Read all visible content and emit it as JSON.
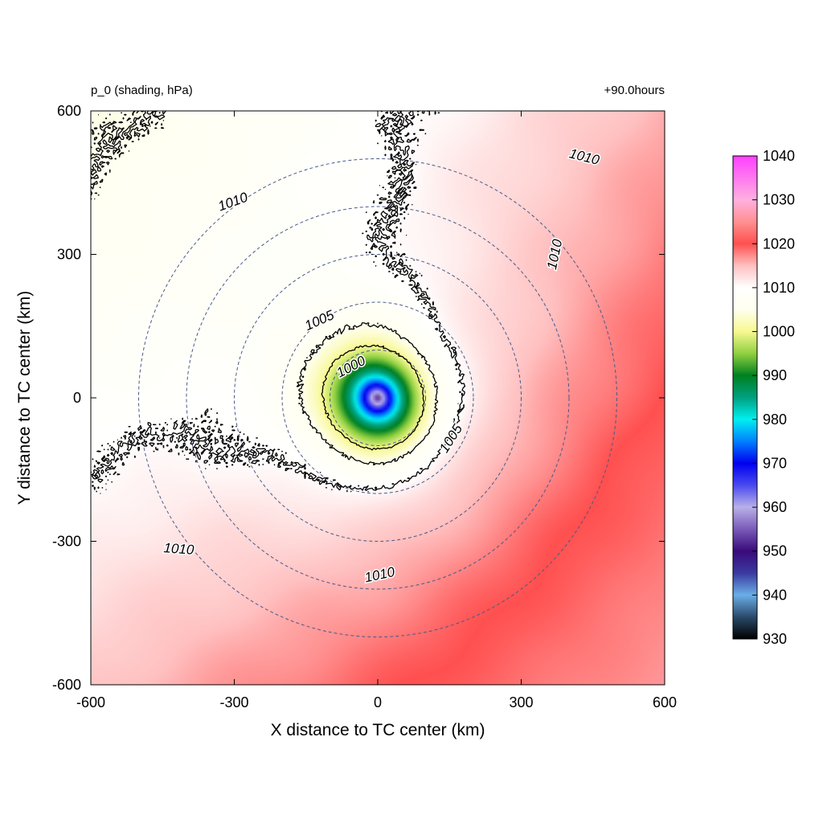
{
  "chart_data": {
    "type": "heatmap",
    "title_left": "p_0 (shading, hPa)",
    "title_right": "+90.0hours",
    "xlabel": "X distance to TC center (km)",
    "ylabel": "Y distance to TC center (km)",
    "xlim": [
      -600,
      600
    ],
    "ylim": [
      -600,
      600
    ],
    "xticks": [
      -600,
      -300,
      0,
      300,
      600
    ],
    "yticks": [
      -600,
      -300,
      0,
      300,
      600
    ],
    "colorbar": {
      "min": 930,
      "max": 1040,
      "ticks": [
        930,
        940,
        950,
        960,
        970,
        980,
        990,
        1000,
        1010,
        1020,
        1030,
        1040
      ],
      "stops": [
        {
          "value": 930,
          "color": "#000000"
        },
        {
          "value": 935,
          "color": "#2a4a6a"
        },
        {
          "value": 940,
          "color": "#6aaee8"
        },
        {
          "value": 945,
          "color": "#3a3aa0"
        },
        {
          "value": 950,
          "color": "#3a0a7a"
        },
        {
          "value": 955,
          "color": "#7a5ab8"
        },
        {
          "value": 960,
          "color": "#b8b0e8"
        },
        {
          "value": 965,
          "color": "#4a4af0"
        },
        {
          "value": 970,
          "color": "#0000f0"
        },
        {
          "value": 975,
          "color": "#0080ff"
        },
        {
          "value": 980,
          "color": "#00f0f0"
        },
        {
          "value": 985,
          "color": "#00a080"
        },
        {
          "value": 990,
          "color": "#008020"
        },
        {
          "value": 995,
          "color": "#90d040"
        },
        {
          "value": 1000,
          "color": "#f8f890"
        },
        {
          "value": 1005,
          "color": "#fffff0"
        },
        {
          "value": 1010,
          "color": "#ffffff"
        },
        {
          "value": 1015,
          "color": "#ffc0c0"
        },
        {
          "value": 1020,
          "color": "#ff5050"
        },
        {
          "value": 1025,
          "color": "#ff9090"
        },
        {
          "value": 1030,
          "color": "#ffb0e0"
        },
        {
          "value": 1040,
          "color": "#ff40ff"
        }
      ]
    },
    "pressure_field": {
      "center": [
        0,
        0
      ],
      "min_value": 958,
      "environment_value": 1012
    },
    "contours": [
      {
        "level": 1000,
        "label": "1000"
      },
      {
        "level": 1005,
        "label": "1005"
      },
      {
        "level": 1005,
        "label": "1005"
      },
      {
        "level": 1010,
        "label": "1010"
      },
      {
        "level": 1010,
        "label": "1010"
      },
      {
        "level": 1010,
        "label": "1010"
      },
      {
        "level": 1010,
        "label": "1010"
      },
      {
        "level": 1010,
        "label": "1010"
      }
    ],
    "range_circles_km": [
      100,
      200,
      300,
      400,
      500
    ]
  }
}
